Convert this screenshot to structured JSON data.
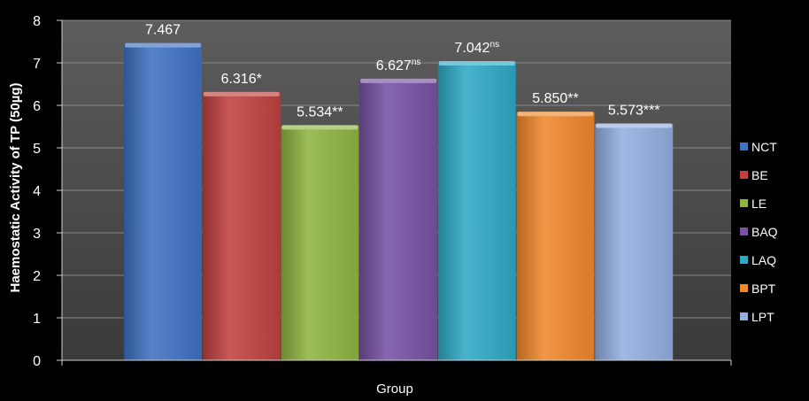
{
  "chart_data": {
    "type": "bar",
    "title": "",
    "xlabel": "Group",
    "ylabel": "Haemostatic Activity of TP (50µg)",
    "ylim": [
      0,
      8
    ],
    "yticks": [
      0,
      1,
      2,
      3,
      4,
      5,
      6,
      7,
      8
    ],
    "grid": true,
    "legend_position": "right",
    "categories": [
      "NCT",
      "BE",
      "LE",
      "BAQ",
      "LAQ",
      "BPT",
      "LPT"
    ],
    "values": [
      7.467,
      6.316,
      5.534,
      6.627,
      7.042,
      5.85,
      5.573
    ],
    "data_labels": [
      "7.467",
      "6.316*",
      "5.534**",
      "6.627",
      "7.042",
      "5.850**",
      "5.573***"
    ],
    "data_label_superscripts": [
      "",
      "",
      "",
      "ns",
      "ns",
      "",
      ""
    ],
    "colors": [
      "#3f72c2",
      "#c0413f",
      "#90b441",
      "#7752a4",
      "#2fa9c6",
      "#f0882c",
      "#93aee0"
    ]
  }
}
